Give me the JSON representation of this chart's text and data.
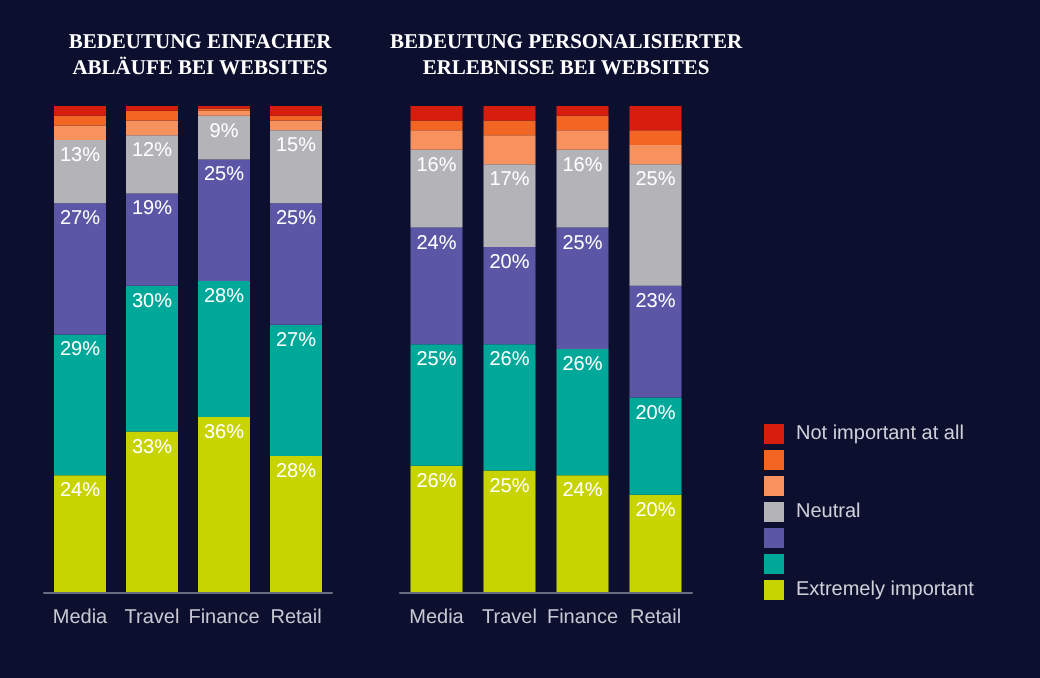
{
  "chart_data": [
    {
      "type": "bar",
      "title": "BEDEUTUNG EINFACHER\nABLÄUFE BEI WEBSITES",
      "categories": [
        "Media",
        "Travel",
        "Finance",
        "Retail"
      ],
      "stacked": true,
      "ylim": [
        0,
        100
      ],
      "tick_labels": "x",
      "legend": false,
      "grid": false,
      "series": [
        {
          "color": "#c8d400",
          "values": [
            24,
            33,
            36,
            28
          ],
          "value_labels": [
            "24%",
            "33%",
            "36%",
            "28%"
          ]
        },
        {
          "color": "#00a89a",
          "values": [
            29,
            30,
            28,
            27
          ],
          "value_labels": [
            "29%",
            "30%",
            "28%",
            "27%"
          ]
        },
        {
          "color": "#5b57a6",
          "values": [
            27,
            19,
            25,
            25
          ],
          "value_labels": [
            "27%",
            "19%",
            "25%",
            "25%"
          ]
        },
        {
          "color": "#b4b4b8",
          "values": [
            13,
            12,
            9,
            15
          ],
          "value_labels": [
            "13%",
            "12%",
            "9%",
            "15%"
          ]
        },
        {
          "color": "#f7925f",
          "values": [
            3,
            3,
            1,
            2
          ]
        },
        {
          "color": "#f26522",
          "values": [
            2,
            2,
            0.5,
            1
          ]
        },
        {
          "color": "#d71e0e",
          "values": [
            2,
            1,
            0.5,
            2
          ]
        }
      ]
    },
    {
      "type": "bar",
      "title": "BEDEUTUNG PERSONALISIERTER\nERLEBNISSE BEI WEBSITES",
      "categories": [
        "Media",
        "Travel",
        "Finance",
        "Retail"
      ],
      "stacked": true,
      "ylim": [
        0,
        100
      ],
      "tick_labels": "x",
      "legend": "right",
      "grid": false,
      "series": [
        {
          "name": "Extremely important",
          "color": "#c8d400",
          "values": [
            26,
            25,
            24,
            20
          ],
          "value_labels": [
            "26%",
            "25%",
            "24%",
            "20%"
          ]
        },
        {
          "color": "#00a89a",
          "values": [
            25,
            26,
            26,
            20
          ],
          "value_labels": [
            "25%",
            "26%",
            "26%",
            "20%"
          ]
        },
        {
          "color": "#5b57a6",
          "values": [
            24,
            20,
            25,
            23
          ],
          "value_labels": [
            "24%",
            "20%",
            "25%",
            "23%"
          ]
        },
        {
          "name": "Neutral",
          "color": "#b4b4b8",
          "values": [
            16,
            17,
            16,
            25
          ],
          "value_labels": [
            "16%",
            "17%",
            "16%",
            "25%"
          ]
        },
        {
          "color": "#f7925f",
          "values": [
            4,
            6,
            4,
            4
          ]
        },
        {
          "color": "#f26522",
          "values": [
            2,
            3,
            3,
            3
          ]
        },
        {
          "name": "Not important at all",
          "color": "#d71e0e",
          "values": [
            3,
            3,
            2,
            5
          ]
        }
      ]
    }
  ]
}
